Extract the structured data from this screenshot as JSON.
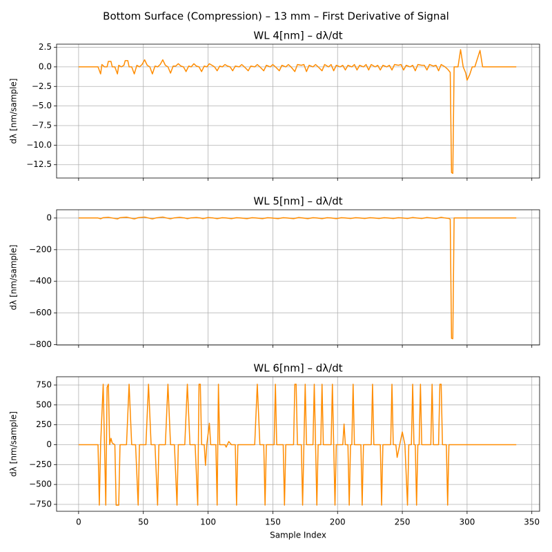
{
  "title": "Bottom Surface (Compression) – 13 mm – First Derivative of Signal",
  "chart_data": [
    {
      "type": "line",
      "title": "WL 4[nm] – dλ/dt",
      "y_label": "dλ [nm/sample]",
      "color": "#ff8c00",
      "grid": true,
      "xlim": [
        -17,
        356
      ],
      "xticks": [
        0,
        50,
        100,
        150,
        200,
        250,
        300,
        350
      ],
      "ylim": [
        -14.2,
        2.9
      ],
      "yticks": [
        2.5,
        {
          "value": 0,
          "label": "0.0"
        },
        {
          "value": -2.5,
          "label": "−2.5"
        },
        {
          "value": -5,
          "label": "−5.0"
        },
        {
          "value": -7.5,
          "label": "−7.5"
        },
        {
          "value": -10,
          "label": "−10.0"
        },
        {
          "value": -12.5,
          "label": "−12.5"
        }
      ],
      "x": [
        0,
        15,
        17,
        18,
        20,
        22,
        23,
        25,
        26,
        28,
        30,
        31,
        33,
        35,
        36,
        38,
        39,
        41,
        43,
        45,
        47,
        49,
        51,
        53,
        55,
        57,
        59,
        61,
        63,
        65,
        67,
        69,
        71,
        73,
        75,
        77,
        79,
        81,
        83,
        85,
        87,
        89,
        91,
        93,
        95,
        97,
        99,
        101,
        103,
        105,
        107,
        109,
        111,
        113,
        115,
        117,
        119,
        121,
        124,
        126,
        128,
        131,
        133,
        136,
        138,
        140,
        143,
        145,
        148,
        150,
        152,
        155,
        157,
        160,
        162,
        164,
        167,
        169,
        172,
        174,
        176,
        178,
        181,
        183,
        185,
        188,
        190,
        193,
        195,
        197,
        199,
        202,
        204,
        206,
        208,
        211,
        213,
        215,
        217,
        220,
        222,
        224,
        226,
        229,
        231,
        233,
        235,
        238,
        240,
        242,
        244,
        247,
        249,
        251,
        253,
        256,
        258,
        260,
        262,
        265,
        267,
        269,
        271,
        274,
        276,
        278,
        280,
        283,
        285,
        287,
        288,
        289,
        290,
        293,
        295,
        297,
        299,
        300,
        302,
        304,
        306,
        310,
        312,
        338
      ],
      "values": [
        0,
        0,
        -0.9,
        0.3,
        0,
        0,
        0.7,
        0.7,
        0,
        0,
        -0.9,
        0.2,
        0,
        0.2,
        0.8,
        0.8,
        0,
        0,
        -0.9,
        0.2,
        0,
        0.3,
        0.9,
        0.2,
        0,
        -0.9,
        0.1,
        0,
        0.3,
        0.9,
        0.2,
        0,
        -0.8,
        0.1,
        0.1,
        0.4,
        0.1,
        0,
        -0.6,
        0.1,
        0,
        0.4,
        0.1,
        0,
        -0.6,
        0.1,
        0,
        0.4,
        0.2,
        0,
        -0.5,
        0.1,
        0,
        0.3,
        0.1,
        0,
        -0.5,
        0.1,
        0,
        0.3,
        0,
        -0.5,
        0.1,
        0,
        0.3,
        0,
        -0.5,
        0.2,
        0,
        0.3,
        0,
        -0.5,
        0.2,
        0,
        0.3,
        0,
        -0.6,
        0.3,
        0.2,
        0.3,
        -0.6,
        0.2,
        0,
        0.3,
        0,
        -0.5,
        0.3,
        0,
        0.3,
        -0.5,
        0.2,
        0,
        0.2,
        -0.4,
        0.2,
        0,
        0.3,
        -0.4,
        0.2,
        0,
        0.3,
        -0.4,
        0.3,
        0,
        0.2,
        -0.4,
        0.2,
        0,
        0.2,
        -0.4,
        0.3,
        0.2,
        0.3,
        -0.4,
        0.2,
        0,
        0.2,
        -0.5,
        0.3,
        0.2,
        0.2,
        -0.4,
        0.3,
        0.1,
        0.2,
        -0.5,
        0.3,
        0,
        -0.3,
        -0.7,
        -13.5,
        -13.6,
        0,
        0,
        2.2,
        0,
        -0.8,
        -1.7,
        -1.0,
        0,
        0,
        2.1,
        0,
        0
      ]
    },
    {
      "type": "line",
      "title": "WL 5[nm] – dλ/dt",
      "y_label": "dλ [nm/sample]",
      "color": "#ff8c00",
      "grid": true,
      "xlim": [
        -17,
        356
      ],
      "xticks": [
        0,
        50,
        100,
        150,
        200,
        250,
        300,
        350
      ],
      "ylim": [
        -802,
        52
      ],
      "yticks": [
        0,
        {
          "value": -200,
          "label": "−200"
        },
        {
          "value": -400,
          "label": "−400"
        },
        {
          "value": -600,
          "label": "−600"
        },
        {
          "value": -800,
          "label": "−800"
        }
      ],
      "x": [
        0,
        15,
        17,
        19,
        23,
        26,
        30,
        32,
        37,
        40,
        43,
        46,
        51,
        54,
        57,
        60,
        65,
        68,
        71,
        74,
        78,
        82,
        84,
        87,
        91,
        94,
        96,
        100,
        104,
        107,
        111,
        114,
        118,
        122,
        125,
        130,
        134,
        137,
        142,
        146,
        149,
        154,
        158,
        161,
        166,
        170,
        173,
        177,
        181,
        184,
        188,
        192,
        195,
        199,
        203,
        206,
        210,
        214,
        217,
        221,
        225,
        228,
        232,
        236,
        239,
        243,
        247,
        250,
        254,
        258,
        261,
        265,
        269,
        272,
        276,
        280,
        283,
        286,
        287,
        288,
        289,
        290,
        338
      ],
      "values": [
        0,
        0,
        -5,
        2,
        4,
        0,
        -6,
        2,
        5,
        0,
        -6,
        2,
        6,
        0,
        -6,
        1,
        6,
        0,
        -5,
        1,
        4,
        0,
        -4,
        1,
        3,
        0,
        -4,
        3,
        0,
        -4,
        2,
        0,
        -4,
        2,
        0,
        -4,
        2,
        0,
        -4,
        2,
        0,
        -4,
        2,
        0,
        -4,
        3,
        0,
        -4,
        2,
        0,
        -4,
        2,
        0,
        -4,
        2,
        0,
        -3,
        2,
        0,
        -3,
        2,
        0,
        -3,
        2,
        0,
        -3,
        2,
        0,
        -3,
        3,
        0,
        -3,
        3,
        0,
        -3,
        4,
        0,
        -3,
        -8,
        -760,
        -762,
        0,
        0
      ]
    },
    {
      "type": "line",
      "title": "WL 6[nm] – dλ/dt",
      "y_label": "dλ [nm/sample]",
      "x_label": "Sample Index",
      "color": "#ff8c00",
      "grid": true,
      "xlim": [
        -17,
        356
      ],
      "xticks": [
        0,
        50,
        100,
        150,
        200,
        250,
        300,
        350
      ],
      "ylim": [
        -837,
        854
      ],
      "yticks": [
        750,
        500,
        250,
        0,
        {
          "value": -250,
          "label": "−250"
        },
        {
          "value": -500,
          "label": "−500"
        },
        {
          "value": -750,
          "label": "−750"
        }
      ],
      "x": [
        0,
        15,
        16,
        17,
        19,
        20,
        21,
        22,
        23,
        24,
        25,
        26,
        28,
        29,
        31,
        32,
        37,
        39,
        41,
        44,
        46,
        47,
        52,
        54,
        56,
        59,
        61,
        62,
        67,
        69,
        71,
        74,
        76,
        77,
        82,
        84,
        86,
        90,
        92,
        93,
        94,
        95,
        97,
        98,
        99,
        101,
        102,
        106,
        107,
        108,
        109,
        113,
        114,
        116,
        118,
        121,
        122,
        123,
        136,
        138,
        140,
        143,
        144,
        145,
        151,
        152,
        153,
        158,
        159,
        160,
        166,
        167,
        168,
        169,
        172,
        173,
        174,
        175,
        176,
        181,
        182,
        183,
        184,
        185,
        187,
        188,
        189,
        195,
        196,
        197,
        198,
        199,
        204,
        205,
        206,
        208,
        209,
        210,
        211,
        212,
        213,
        218,
        219,
        220,
        226,
        227,
        228,
        233,
        234,
        235,
        241,
        242,
        243,
        245,
        246,
        248,
        250,
        252,
        254,
        255,
        257,
        258,
        259,
        260,
        261,
        262,
        263,
        264,
        265,
        272,
        273,
        274,
        278,
        279,
        280,
        281,
        284,
        285,
        286,
        338
      ],
      "values": [
        0,
        0,
        -760,
        0,
        760,
        0,
        -760,
        720,
        760,
        0,
        80,
        20,
        0,
        -760,
        -760,
        0,
        0,
        760,
        0,
        0,
        -760,
        0,
        0,
        760,
        0,
        0,
        -760,
        0,
        0,
        760,
        0,
        0,
        -760,
        0,
        0,
        760,
        0,
        0,
        -760,
        760,
        760,
        0,
        0,
        -260,
        0,
        270,
        0,
        0,
        -760,
        760,
        0,
        0,
        -30,
        40,
        0,
        0,
        -760,
        0,
        0,
        760,
        0,
        0,
        -760,
        0,
        0,
        760,
        0,
        0,
        -760,
        0,
        0,
        760,
        760,
        0,
        0,
        -760,
        0,
        760,
        0,
        0,
        760,
        0,
        -760,
        0,
        0,
        760,
        0,
        0,
        760,
        0,
        -760,
        0,
        0,
        260,
        0,
        0,
        -760,
        0,
        0,
        760,
        0,
        0,
        -760,
        0,
        0,
        760,
        0,
        0,
        -760,
        0,
        0,
        760,
        0,
        0,
        -160,
        0,
        160,
        0,
        -760,
        0,
        0,
        760,
        0,
        0,
        -760,
        0,
        0,
        760,
        0,
        0,
        760,
        0,
        0,
        760,
        760,
        0,
        0,
        -760,
        0,
        0
      ]
    }
  ]
}
